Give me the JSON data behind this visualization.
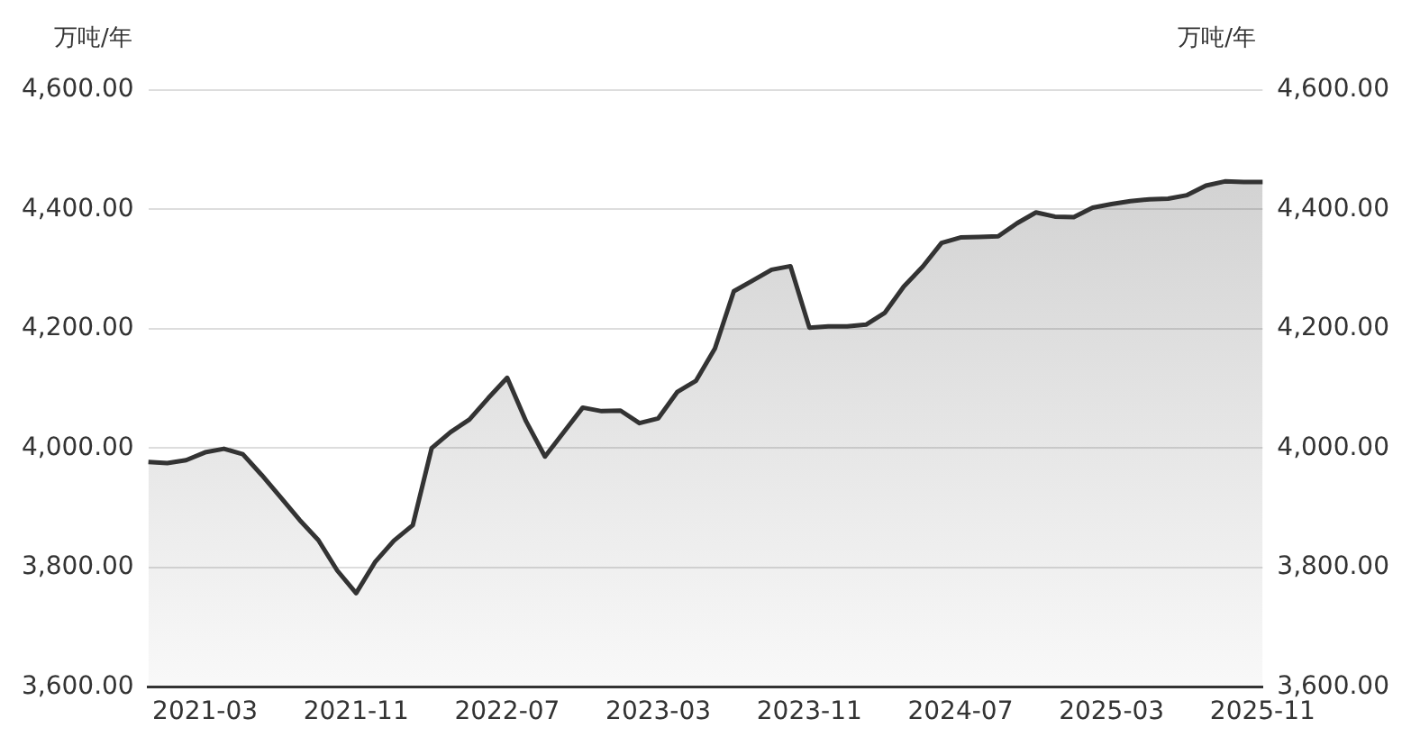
{
  "chart_data": {
    "type": "area",
    "ylabel": "万吨/年",
    "y2label": "万吨/年",
    "categories": [
      null,
      null,
      null,
      "2021-03",
      null,
      null,
      null,
      null,
      null,
      null,
      null,
      "2021-11",
      null,
      null,
      null,
      null,
      null,
      null,
      null,
      "2022-07",
      null,
      null,
      null,
      null,
      null,
      null,
      null,
      "2023-03",
      null,
      null,
      null,
      null,
      null,
      null,
      null,
      "2023-11",
      null,
      null,
      null,
      null,
      null,
      null,
      null,
      "2024-07",
      null,
      null,
      null,
      null,
      null,
      null,
      null,
      "2025-03",
      null,
      null,
      null,
      null,
      null,
      null,
      null,
      "2025-11"
    ],
    "series": [
      {
        "color": "#333333",
        "values": [
          3977,
          3975,
          3980,
          3993,
          3999,
          3990,
          3955,
          3918,
          3880,
          3846,
          3795,
          3757,
          3809,
          3845,
          3871,
          4000,
          4027,
          4048,
          4084,
          4118,
          4045,
          3986,
          4027,
          4068,
          4062,
          4063,
          4042,
          4050,
          4094,
          4113,
          4167,
          4263,
          4281,
          4299,
          4305,
          4202,
          4204,
          4204,
          4207,
          4227,
          4271,
          4304,
          4344,
          4353,
          4354,
          4355,
          4377,
          4395,
          4388,
          4387,
          4403,
          4409,
          4414,
          4417,
          4418,
          4424,
          4440,
          4447,
          4446,
          4446
        ]
      }
    ],
    "ylim": [
      3600,
      4600
    ],
    "yticks": [
      {
        "value": 3600,
        "label": "3,600.00"
      },
      {
        "value": 3800,
        "label": "3,800.00"
      },
      {
        "value": 4000,
        "label": "4,000.00"
      },
      {
        "value": 4200,
        "label": "4,200.00"
      },
      {
        "value": 4400,
        "label": "4,400.00"
      },
      {
        "value": 4600,
        "label": "4,600.00"
      }
    ],
    "y2lim": [
      3600,
      4600
    ],
    "y2ticks": [
      {
        "value": 3600,
        "label": "3,600.00"
      },
      {
        "value": 3800,
        "label": "3,800.00"
      },
      {
        "value": 4000,
        "label": "4,000.00"
      },
      {
        "value": 4200,
        "label": "4,200.00"
      },
      {
        "value": 4400,
        "label": "4,400.00"
      },
      {
        "value": 4600,
        "label": "4,600.00"
      }
    ],
    "grid": "y",
    "legend": false,
    "marker": "none",
    "line_style": "solid"
  }
}
